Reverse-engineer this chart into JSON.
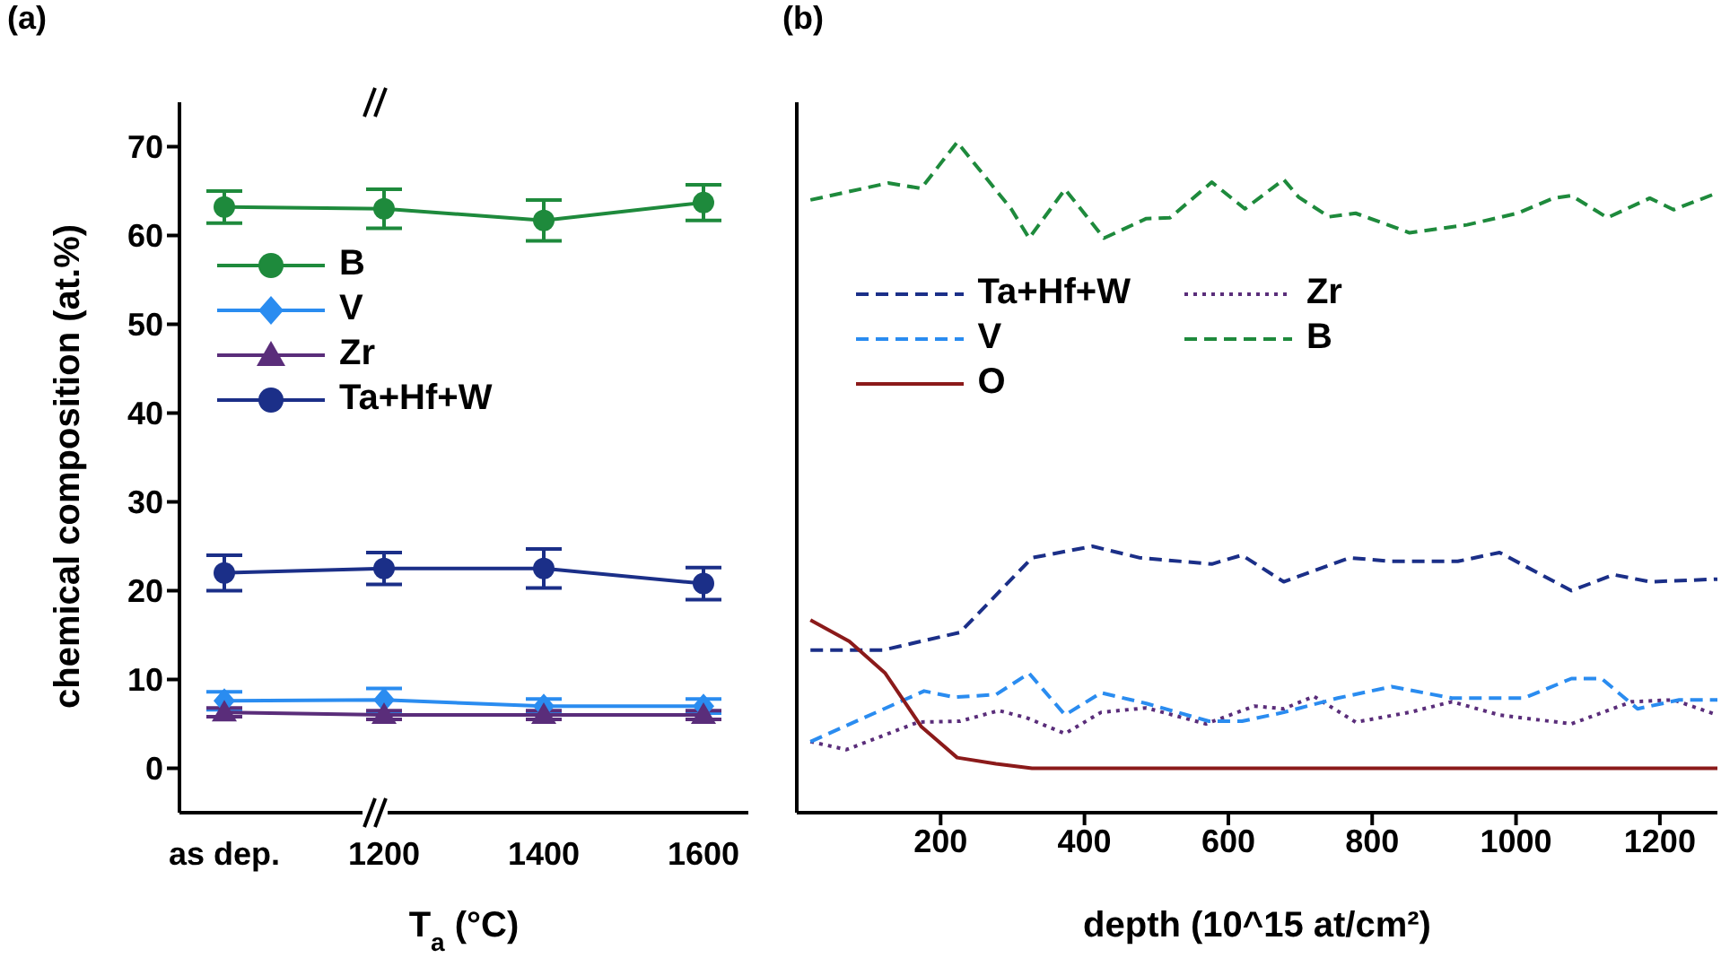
{
  "chart_data": [
    {
      "type": "line",
      "title": "(a)",
      "xlabel": "T$_{a}$ (°C)",
      "ylabel": "chemical composition (at.%)",
      "categories": [
        "as dep.",
        "1200",
        "1400",
        "1600"
      ],
      "ylim": [
        -5,
        75
      ],
      "yticks": [
        0,
        10,
        20,
        30,
        40,
        50,
        60,
        70
      ],
      "legend": "top left",
      "grid": false,
      "series": [
        {
          "name": "B",
          "color": "#1e8a3c",
          "marker": "circle",
          "values": [
            63.2,
            63,
            61.7,
            63.7
          ],
          "errors": [
            1.8,
            2.2,
            2.3,
            2
          ]
        },
        {
          "name": "V",
          "color": "#2a8cf0",
          "marker": "diamond",
          "values": [
            7.6,
            7.7,
            7,
            7
          ],
          "errors": [
            1,
            1.3,
            0.8,
            0.8
          ]
        },
        {
          "name": "Zr",
          "color": "#5a2d7a",
          "marker": "triangle",
          "values": [
            6.3,
            6,
            6,
            6
          ],
          "errors": [
            0.5,
            0.5,
            0.5,
            0.5
          ]
        },
        {
          "name": "Ta+Hf+W",
          "color": "#1b2f88",
          "marker": "circle",
          "values": [
            22,
            22.5,
            22.5,
            20.8
          ],
          "errors": [
            2,
            1.8,
            2.2,
            1.8
          ]
        }
      ]
    },
    {
      "type": "line",
      "title": "(b)",
      "xlabel": "depth (10^15 at/cm²)",
      "xlim": [
        0,
        1280
      ],
      "xticks": [
        200,
        400,
        600,
        800,
        1000,
        1200
      ],
      "ylim": [
        -5,
        75
      ],
      "yticks": [
        0,
        10,
        20,
        30,
        40,
        50,
        60,
        70
      ],
      "tick_labels": "x",
      "legend": "left",
      "grid": false,
      "marker": "none",
      "series": [
        {
          "name": "Ta+Hf+W",
          "color": "#1b2f88",
          "line_style": "dashed",
          "x": [
            19,
            119,
            227,
            327,
            411,
            477,
            577,
            619,
            677,
            769,
            827,
            919,
            977,
            1077,
            1136,
            1186,
            1280
          ],
          "values": [
            13.3,
            13.3,
            15.3,
            23.7,
            25,
            23.7,
            23,
            24,
            21,
            23.7,
            23.3,
            23.3,
            24.3,
            20,
            21.8,
            21,
            21.3
          ]
        },
        {
          "name": "Zr",
          "color": "#5a2d7a",
          "line_style": "dotted",
          "x": [
            19,
            69,
            169,
            227,
            281,
            319,
            373,
            423,
            486,
            569,
            636,
            677,
            719,
            777,
            852,
            911,
            977,
            1077,
            1161,
            1219,
            1280
          ],
          "values": [
            3,
            2.1,
            5.2,
            5.3,
            6.5,
            5.7,
            3.9,
            6.3,
            6.8,
            5,
            7,
            6.7,
            8.1,
            5.2,
            6.3,
            7.5,
            6,
            5,
            7.5,
            7.7,
            6
          ]
        },
        {
          "name": "V",
          "color": "#2a8cf0",
          "line_style": "dashed",
          "x": [
            19,
            177,
            219,
            277,
            323,
            373,
            423,
            486,
            573,
            619,
            677,
            752,
            827,
            911,
            1011,
            1077,
            1119,
            1169,
            1227,
            1280
          ],
          "values": [
            3,
            8.7,
            8,
            8.3,
            10.7,
            6,
            8.5,
            7.3,
            5.3,
            5.3,
            6.3,
            7.9,
            9.2,
            7.9,
            7.9,
            10.1,
            10.1,
            6.7,
            7.7,
            7.7
          ]
        },
        {
          "name": "B",
          "color": "#1e8a3c",
          "line_style": "dashed",
          "x": [
            19,
            127,
            173,
            223,
            298,
            323,
            373,
            427,
            486,
            519,
            577,
            623,
            677,
            698,
            740,
            777,
            852,
            932,
            1002,
            1052,
            1077,
            1127,
            1186,
            1219,
            1280
          ],
          "values": [
            64,
            65.9,
            65.3,
            70.5,
            63,
            59.7,
            65.2,
            59.7,
            61.9,
            62,
            66,
            63,
            66.3,
            64.3,
            62.1,
            62.5,
            60.3,
            61.2,
            62.5,
            64.2,
            64.5,
            62,
            64.2,
            62.9,
            64.8
          ]
        },
        {
          "name": "O",
          "color": "#8b1a1a",
          "line_style": "solid",
          "x": [
            19,
            73,
            123,
            173,
            223,
            277,
            327,
            1280
          ],
          "values": [
            16.7,
            14.3,
            10.7,
            4.7,
            1.2,
            0.5,
            0,
            0
          ]
        }
      ]
    }
  ]
}
